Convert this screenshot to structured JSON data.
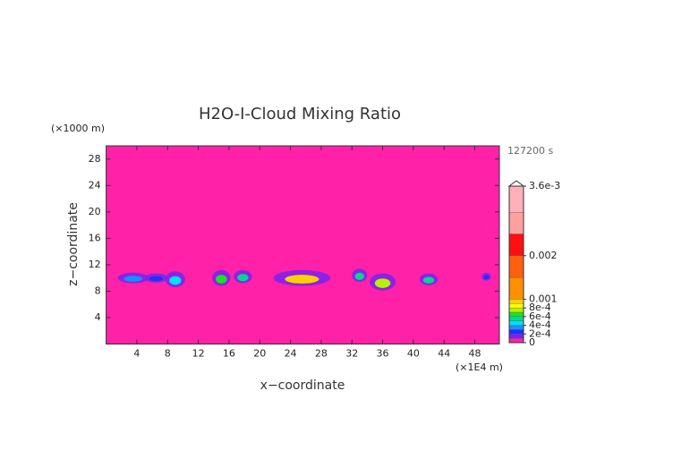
{
  "chart_data": {
    "type": "contour",
    "title": "H2O-I-Cloud Mixing Ratio",
    "x_label": "x−coordinate",
    "y_label": "z−coordinate",
    "x_unit": "(×1E4 m)",
    "y_unit": "(×1000 m)",
    "time_label": "127200 s",
    "background_color": "#ff22a8",
    "xlim": [
      0,
      51.2
    ],
    "ylim": [
      0,
      30
    ],
    "xticks": [
      4,
      8,
      12,
      16,
      20,
      24,
      28,
      32,
      36,
      40,
      44,
      48
    ],
    "yticks": [
      4,
      8,
      12,
      16,
      20,
      24,
      28
    ],
    "cells": [
      {
        "x": 3.5,
        "z": 10,
        "width": 4,
        "height": 1.6,
        "peak": 0.0003
      },
      {
        "x": 6.5,
        "z": 10,
        "width": 3,
        "height": 1.4,
        "peak": 0.0002
      },
      {
        "x": 9,
        "z": 9.8,
        "width": 2.6,
        "height": 2.4,
        "peak": 0.0004
      },
      {
        "x": 15,
        "z": 10,
        "width": 2.4,
        "height": 2.4,
        "peak": 0.0006
      },
      {
        "x": 17.8,
        "z": 10.2,
        "width": 2.4,
        "height": 2,
        "peak": 0.0005
      },
      {
        "x": 25.5,
        "z": 10,
        "width": 7.4,
        "height": 2.4,
        "peak": 0.0009
      },
      {
        "x": 33,
        "z": 10.4,
        "width": 2,
        "height": 2,
        "peak": 0.0005
      },
      {
        "x": 36,
        "z": 9.4,
        "width": 3.4,
        "height": 2.6,
        "peak": 0.0007
      },
      {
        "x": 42,
        "z": 9.8,
        "width": 2.4,
        "height": 1.8,
        "peak": 0.0005
      },
      {
        "x": 49.5,
        "z": 10.2,
        "width": 1.2,
        "height": 1.2,
        "peak": 0.0002
      }
    ],
    "colorbar": {
      "lim": [
        0,
        0.0036
      ],
      "ticks": [
        0,
        {
          "value": 0.0002,
          "label": "2e-4"
        },
        {
          "value": 0.0004,
          "label": "4e-4"
        },
        {
          "value": 0.0006,
          "label": "6e-4"
        },
        {
          "value": 0.0008,
          "label": "8e-4"
        },
        0.001,
        0.002,
        {
          "value": 0.0036,
          "label": "3.6e-3"
        }
      ],
      "boundaries": [
        0,
        0.0001,
        0.0002,
        0.0003,
        0.0004,
        0.0005,
        0.0006,
        0.0007,
        0.0008,
        0.0009,
        0.001,
        0.0015,
        0.002,
        0.0025,
        0.003,
        0.0036
      ],
      "colors": [
        "#ff22a8",
        "#7a22ee",
        "#2030ff",
        "#1890ff",
        "#00e0ff",
        "#00d890",
        "#20e020",
        "#b8f000",
        "#ffff00",
        "#ffd000",
        "#ff9000",
        "#ff6010",
        "#ff1010",
        "#ffa0a0",
        "#ffb0b8"
      ]
    }
  }
}
